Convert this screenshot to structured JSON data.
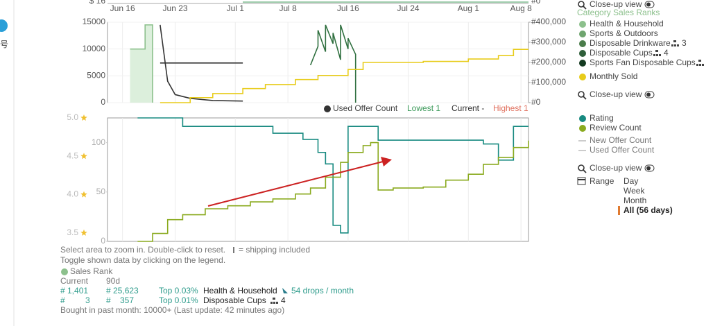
{
  "side_label": "号",
  "top_axis": {
    "left_label": "$ 16",
    "right_label": "#0"
  },
  "chart_data": [
    {
      "type": "line",
      "xlim": [
        "Jun 14",
        "Aug 9"
      ],
      "xticks": [
        "Jun 16",
        "Jun 23",
        "Jul 1",
        "Jul 8",
        "Jul 16",
        "Jul 24",
        "Aug 1",
        "Aug 8"
      ],
      "ylim": [
        0,
        15000
      ],
      "yticks": [
        0,
        5000,
        10000,
        15000
      ],
      "y2lim": [
        0,
        400000
      ],
      "y2ticks": [
        {
          "value": 0,
          "label": "#0"
        },
        {
          "value": 100000,
          "label": "#100,000"
        },
        {
          "value": 200000,
          "label": "#200,000"
        },
        {
          "value": 300000,
          "label": "#300,000"
        },
        {
          "value": 400000,
          "label": "#400,000"
        }
      ],
      "grid": true,
      "series": [
        {
          "color": "#8cc08c",
          "fill": "#dcefdc",
          "step": true,
          "x": [
            "Jun 17",
            "Jun 19",
            "Jun 20"
          ],
          "values": [
            10000,
            14500,
            0
          ]
        },
        {
          "color": "#333333",
          "step": false,
          "x": [
            "Jun 21",
            "Jun 22",
            "Jun 23",
            "Jun 25",
            "Jun 28",
            "Jul 2"
          ],
          "values": [
            14500,
            4000,
            1500,
            800,
            400,
            300
          ]
        },
        {
          "color": "#333333",
          "step": false,
          "x": [
            "Jun 21",
            "Jul 2"
          ],
          "values": [
            7400,
            7400
          ]
        },
        {
          "color": "#2f6f3f",
          "step": false,
          "x": [
            "Jul 11",
            "Jul 12",
            "Jul 12",
            "Jul 13",
            "Jul 13",
            "Jul 14",
            "Jul 14",
            "Jul 15",
            "Jul 15",
            "Jul 16",
            "Jul 16",
            "Jul 17",
            "Jul 17"
          ],
          "values": [
            7000,
            10500,
            13500,
            9500,
            14500,
            11000,
            13000,
            8000,
            14500,
            10000,
            12000,
            9000,
            0
          ]
        },
        {
          "color": "#e8cc1a",
          "step": true,
          "axis": "y2",
          "x": [
            "Jun 21",
            "Jun 25",
            "Jun 28",
            "Jul 2",
            "Jul 5",
            "Jul 9",
            "Jul 12",
            "Jul 16",
            "Jul 18",
            "Jul 26",
            "Aug 1",
            "Aug 5",
            "Aug 7",
            "Aug 9"
          ],
          "values": [
            0,
            25000,
            45000,
            70000,
            90000,
            115000,
            135000,
            165000,
            200000,
            205000,
            217000,
            234000,
            265000,
            265000
          ]
        }
      ]
    },
    {
      "type": "line",
      "xlim": [
        "Jun 14",
        "Aug 9"
      ],
      "ylim": [
        3.39,
        5.0
      ],
      "yticks": [
        {
          "value": 3.5,
          "label": "3.5"
        },
        {
          "value": 4.0,
          "label": "4.0"
        },
        {
          "value": 4.5,
          "label": "4.5"
        },
        {
          "value": 5.0,
          "label": "5.0"
        }
      ],
      "y2lim": [
        0,
        125
      ],
      "y2ticks": [
        0,
        50,
        100
      ],
      "grid": true,
      "series": [
        {
          "color": "#178a80",
          "step": true,
          "x": [
            "Jun 18",
            "Jun 24",
            "Jul 6",
            "Jul 10",
            "Jul 12",
            "Jul 13",
            "Jul 14",
            "Jul 15",
            "Jul 16",
            "Jul 20",
            "Aug 3",
            "Aug 5",
            "Aug 7",
            "Aug 9"
          ],
          "values": [
            5.0,
            4.89,
            4.8,
            4.72,
            4.55,
            4.4,
            3.6,
            3.5,
            4.89,
            4.71,
            4.66,
            4.45,
            4.89,
            4.89
          ]
        },
        {
          "color": "#8aaa1e",
          "step": true,
          "axis": "y2",
          "x": [
            "Jun 18",
            "Jun 20",
            "Jun 22",
            "Jun 24",
            "Jun 27",
            "Jun 30",
            "Jul 3",
            "Jul 6",
            "Jul 9",
            "Jul 11",
            "Jul 13",
            "Jul 15",
            "Jul 16",
            "Jul 18",
            "Jul 19",
            "Jul 20",
            "Jul 22",
            "Jul 26",
            "Jul 29",
            "Aug 1",
            "Aug 3",
            "Aug 5",
            "Aug 7",
            "Aug 9"
          ],
          "values": [
            0,
            8,
            22,
            27,
            33,
            36,
            40,
            43,
            48,
            54,
            65,
            80,
            90,
            97,
            100,
            52,
            54,
            55,
            62,
            68,
            78,
            85,
            95,
            102
          ]
        }
      ]
    }
  ],
  "offer_legend": {
    "used": "Used Offer Count",
    "lowest": "Lowest 1",
    "current": "Current -",
    "highest": "Highest 1"
  },
  "side_panel": {
    "closeup_1": "Close-up view",
    "category_title": "Category Sales Ranks",
    "categories": [
      "Health & Household",
      "Sports & Outdoors",
      "Disposable Drinkware",
      "Disposable Cups",
      "Sports Fan Disposable Cups"
    ],
    "drinkware_count": "3",
    "cups_count": "4",
    "monthly_sold": "Monthly Sold",
    "closeup_2": "Close-up view",
    "rating": "Rating",
    "review_count": "Review Count",
    "new_offer_count": "New Offer Count",
    "used_offer_count": "Used Offer Count",
    "closeup_3": "Close-up view",
    "range_label": "Range",
    "ranges": [
      "Day",
      "Week",
      "Month",
      "All (56 days)"
    ]
  },
  "footer": {
    "hint_1": "Select area to zoom in. Double-click to reset.",
    "shipping": "= shipping included",
    "hint_2": "Toggle shown data by clicking on the legend.",
    "sales_rank": "Sales Rank",
    "col_current": "Current",
    "col_90d": "90d",
    "row_1": {
      "current": "# 1,401",
      "avg": "# 25,623",
      "top": "Top 0.03%",
      "category": "Health & Household",
      "drops": "54 drops / month"
    },
    "row_2": {
      "hash_1": "#",
      "current": "3",
      "hash_2": "#",
      "avg": "357",
      "top": "Top 0.01%",
      "category": "Disposable Cups",
      "count": "4"
    },
    "bought": "Bought in past month: 10000+ (Last update: 42 minutes ago)"
  }
}
